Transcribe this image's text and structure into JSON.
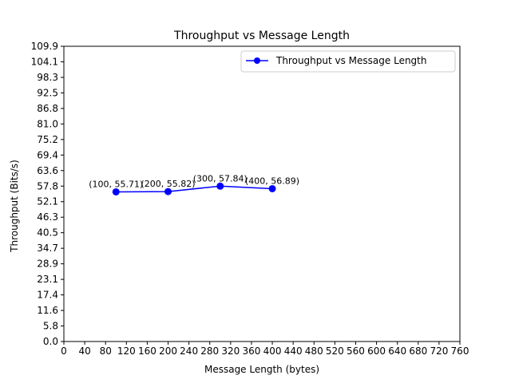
{
  "chart_data": {
    "type": "line",
    "title": "Throughput vs Message Length",
    "xlabel": "Message Length (bytes)",
    "ylabel": "Throughput (Bits/s)",
    "xlim": [
      0,
      760
    ],
    "ylim": [
      0,
      109.9
    ],
    "x_ticks": [
      "0",
      "40",
      "80",
      "120",
      "160",
      "200",
      "240",
      "280",
      "320",
      "360",
      "400",
      "440",
      "480",
      "520",
      "560",
      "600",
      "640",
      "680",
      "720",
      "760"
    ],
    "y_ticks": [
      "0.0",
      "5.8",
      "11.6",
      "17.4",
      "23.1",
      "28.9",
      "34.7",
      "40.5",
      "46.3",
      "52.1",
      "57.8",
      "63.6",
      "69.4",
      "75.2",
      "81.0",
      "86.8",
      "92.5",
      "98.3",
      "104.1",
      "109.9"
    ],
    "grid": false,
    "legend_position": "top-right",
    "series": [
      {
        "name": "Throughput vs Message Length",
        "color": "#0000ff",
        "marker": "circle",
        "x": [
          100,
          200,
          300,
          400
        ],
        "y": [
          55.71,
          55.82,
          57.84,
          56.89
        ],
        "labels": [
          "(100, 55.71)",
          "(200, 55.82)",
          "(300, 57.84)",
          "(400, 56.89)"
        ]
      }
    ]
  }
}
